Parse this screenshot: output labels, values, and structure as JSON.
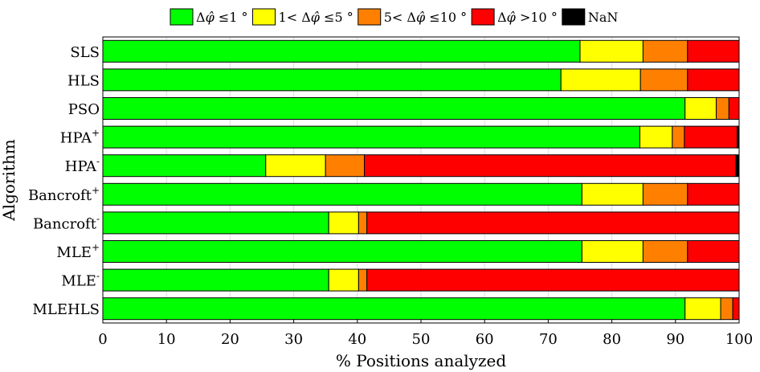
{
  "chart_data": {
    "type": "bar",
    "orientation": "horizontal",
    "stacked": true,
    "xlabel": "% Positions analyzed",
    "ylabel": "Algorithm",
    "xlim": [
      0,
      100
    ],
    "xticks": [
      0,
      10,
      20,
      30,
      40,
      50,
      60,
      70,
      80,
      90,
      100
    ],
    "grid": true,
    "legend_position": "top",
    "categories": [
      {
        "base": "SLS",
        "sup": ""
      },
      {
        "base": "HLS",
        "sup": ""
      },
      {
        "base": "PSO",
        "sup": ""
      },
      {
        "base": "HPA",
        "sup": "+"
      },
      {
        "base": "HPA",
        "sup": "-"
      },
      {
        "base": "Bancroft",
        "sup": "+"
      },
      {
        "base": "Bancroft",
        "sup": "-"
      },
      {
        "base": "MLE",
        "sup": "+"
      },
      {
        "base": "MLE",
        "sup": "-"
      },
      {
        "base": "MLEHLS",
        "sup": ""
      }
    ],
    "series": [
      {
        "legend": [
          {
            "t": "Δ"
          },
          {
            "t": "φ̂",
            "i": true
          },
          {
            "t": " ≤1 °"
          }
        ],
        "color": "#00ff00",
        "values": [
          75.0,
          72.0,
          91.5,
          84.4,
          25.6,
          75.3,
          35.5,
          75.3,
          35.5,
          91.5
        ]
      },
      {
        "legend": [
          {
            "t": "1< Δ"
          },
          {
            "t": "φ̂",
            "i": true
          },
          {
            "t": " ≤5 °"
          }
        ],
        "color": "#ffff00",
        "values": [
          9.9,
          12.5,
          4.9,
          5.1,
          9.4,
          9.6,
          4.7,
          9.6,
          4.7,
          5.6
        ]
      },
      {
        "legend": [
          {
            "t": "5< Δ"
          },
          {
            "t": "φ̂",
            "i": true
          },
          {
            "t": " ≤10 °"
          }
        ],
        "color": "#ff8000",
        "values": [
          7.0,
          7.4,
          2.0,
          1.9,
          6.1,
          7.0,
          1.3,
          7.0,
          1.3,
          1.9
        ]
      },
      {
        "legend": [
          {
            "t": "Δ"
          },
          {
            "t": "φ̂",
            "i": true
          },
          {
            "t": " >10 °"
          }
        ],
        "color": "#ff0000",
        "values": [
          8.1,
          8.1,
          1.6,
          8.3,
          58.4,
          8.1,
          58.5,
          8.1,
          58.5,
          1.0
        ]
      },
      {
        "legend": [
          {
            "t": "NaN"
          }
        ],
        "color": "#000000",
        "values": [
          0.0,
          0.0,
          0.0,
          0.3,
          0.5,
          0.0,
          0.0,
          0.0,
          0.0,
          0.0
        ]
      }
    ]
  }
}
